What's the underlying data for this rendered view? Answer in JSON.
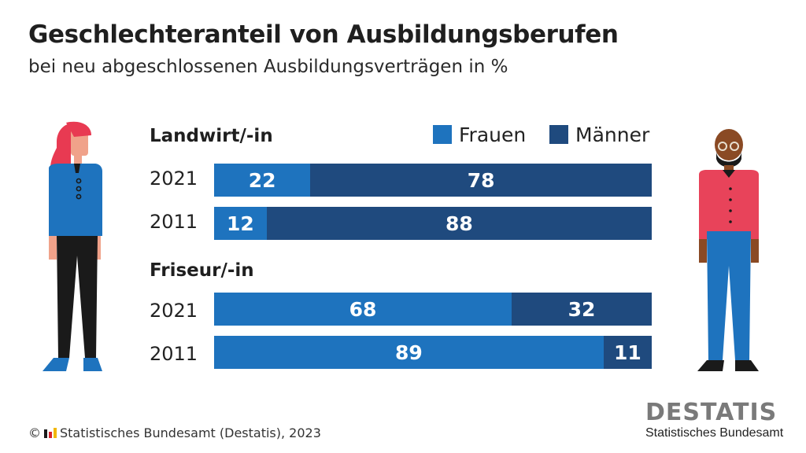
{
  "header": {
    "title": "Geschlechteranteil von Ausbildungsberufen",
    "subtitle": "bei neu abgeschlossenen Ausbildungsverträgen in %"
  },
  "legend": {
    "women": "Frauen",
    "men": "Männer"
  },
  "colors": {
    "women": "#1e73be",
    "men": "#1f4a7e"
  },
  "chart_data": {
    "type": "bar",
    "stacked": true,
    "orientation": "horizontal",
    "groups": [
      {
        "label": "Landwirt/-in",
        "rows": [
          {
            "year": "2021",
            "women": 22,
            "men": 78
          },
          {
            "year": "2011",
            "women": 12,
            "men": 88
          }
        ]
      },
      {
        "label": "Friseur/-in",
        "rows": [
          {
            "year": "2021",
            "women": 68,
            "men": 32
          },
          {
            "year": "2011",
            "women": 89,
            "men": 11
          }
        ]
      }
    ],
    "series": [
      {
        "name": "Frauen"
      },
      {
        "name": "Männer"
      }
    ],
    "xlim": [
      0,
      100
    ]
  },
  "footer": {
    "copyright": "Statistisches Bundesamt (Destatis), 2023"
  },
  "logo": {
    "word": "DESTATIS",
    "sub": "Statistisches Bundesamt"
  }
}
